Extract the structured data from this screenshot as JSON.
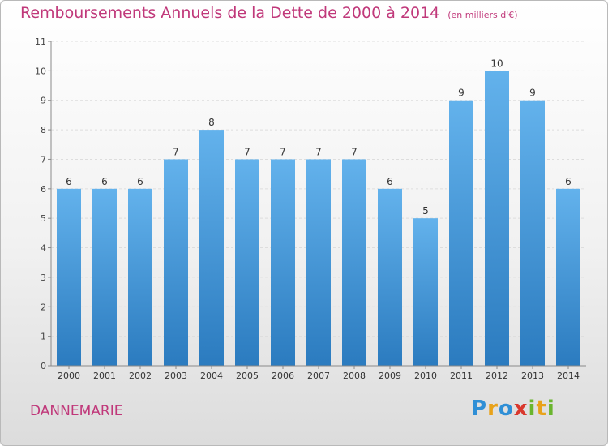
{
  "header": {
    "title": "Remboursements Annuels de la Dette de 2000 à 2014",
    "unit": "(en milliers d'€)"
  },
  "footer": {
    "city": "DANNEMARIE",
    "logo": [
      "P",
      "r",
      "o",
      "x",
      "i",
      "t",
      "i"
    ]
  },
  "colors": {
    "bar_top": "#63b2ec",
    "bar_bottom": "#2b7bbf",
    "title": "#c0387a",
    "axis": "#8a8a8a",
    "grid": "#dddddd"
  },
  "chart_data": {
    "type": "bar",
    "title": "Remboursements Annuels de la Dette de 2000 à 2014",
    "xlabel": "",
    "ylabel": "",
    "categories": [
      "2000",
      "2001",
      "2002",
      "2003",
      "2004",
      "2005",
      "2006",
      "2007",
      "2008",
      "2009",
      "2010",
      "2011",
      "2012",
      "2013",
      "2014"
    ],
    "values": [
      6,
      6,
      6,
      7,
      8,
      7,
      7,
      7,
      7,
      6,
      5,
      9,
      10,
      9,
      6
    ],
    "ylim": [
      0,
      11
    ],
    "yticks": [
      0,
      1,
      2,
      3,
      4,
      5,
      6,
      7,
      8,
      9,
      10,
      11
    ],
    "grid": true,
    "data_labels": true
  }
}
